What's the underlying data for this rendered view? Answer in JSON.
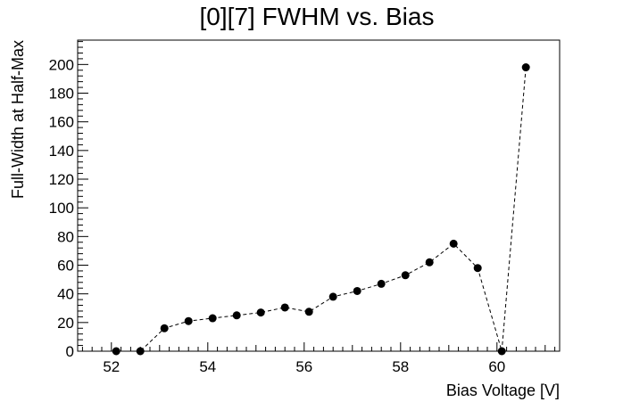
{
  "chart_data": {
    "type": "scatter",
    "title": "[0][7] FWHM vs. Bias",
    "xlabel": "Bias Voltage [V]",
    "ylabel": "Full-Width at Half-Max",
    "xlim": [
      51.3,
      61.3
    ],
    "ylim": [
      0,
      217
    ],
    "x_ticks": [
      52,
      54,
      56,
      58,
      60
    ],
    "y_ticks": [
      0,
      20,
      40,
      60,
      80,
      100,
      120,
      140,
      160,
      180,
      200
    ],
    "grid": false,
    "legend": "none",
    "line_style": "dashed",
    "marker": "filled-circle",
    "colors": {
      "marker": "#000000",
      "line": "#000000",
      "axis": "#000000",
      "background": "#ffffff"
    },
    "series": [
      {
        "x": [
          52.1,
          52.6,
          53.1,
          53.6,
          54.1,
          54.6,
          55.1,
          55.6,
          56.1,
          56.6,
          57.1,
          57.6,
          58.1,
          58.6,
          59.1,
          59.6,
          60.1,
          60.6
        ],
        "y": [
          0,
          0,
          16,
          21,
          23,
          25,
          27,
          30.5,
          27.5,
          38,
          42,
          47,
          53,
          62,
          75,
          58,
          0,
          198
        ]
      }
    ]
  }
}
